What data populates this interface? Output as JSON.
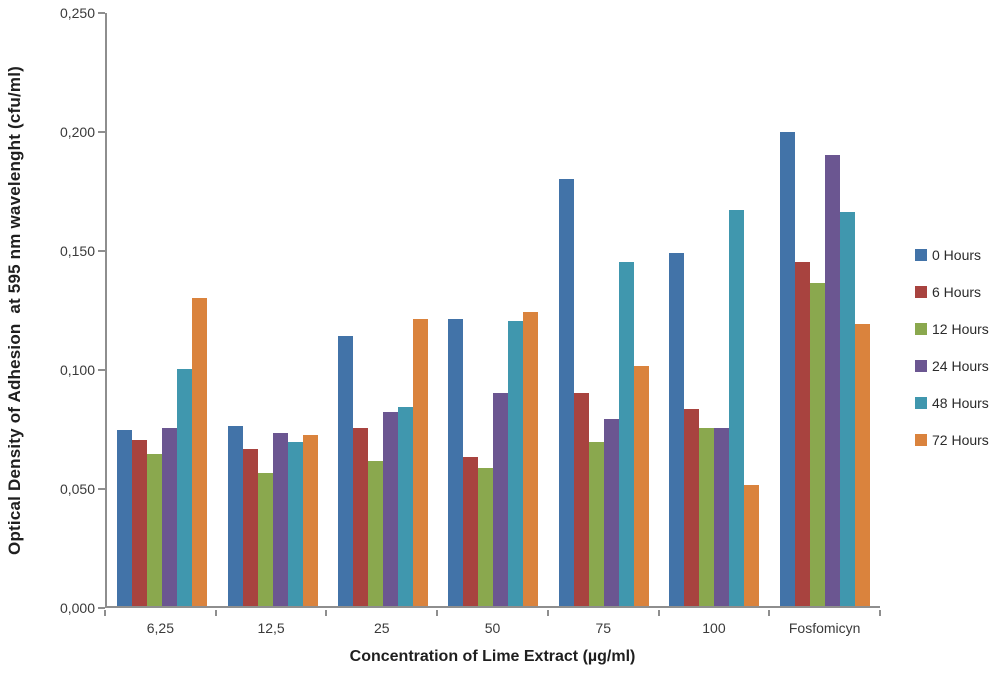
{
  "chart_data": {
    "type": "bar",
    "title": "",
    "xlabel": "Concentration of Lime Extract (µg/ml)",
    "ylabel": "Optical Density of Adhesion  at 595 nm wavelenght (cfu/ml)",
    "categories": [
      "6,25",
      "12,5",
      "25",
      "50",
      "75",
      "100",
      "Fosfomicyn"
    ],
    "series": [
      {
        "name": "0 Hours",
        "color": "#4273a8",
        "values": [
          0.074,
          0.076,
          0.114,
          0.121,
          0.18,
          0.149,
          0.2
        ]
      },
      {
        "name": "6 Hours",
        "color": "#a8433f",
        "values": [
          0.07,
          0.066,
          0.075,
          0.063,
          0.09,
          0.083,
          0.145
        ]
      },
      {
        "name": "12 Hours",
        "color": "#8aa84e",
        "values": [
          0.064,
          0.056,
          0.061,
          0.058,
          0.069,
          0.075,
          0.136
        ]
      },
      {
        "name": "24 Hours",
        "color": "#6b5691",
        "values": [
          0.075,
          0.073,
          0.082,
          0.09,
          0.079,
          0.075,
          0.19
        ]
      },
      {
        "name": "48 Hours",
        "color": "#4097ae",
        "values": [
          0.1,
          0.069,
          0.084,
          0.12,
          0.145,
          0.167,
          0.166
        ]
      },
      {
        "name": "72 Hours",
        "color": "#da833d",
        "values": [
          0.13,
          0.072,
          0.121,
          0.124,
          0.101,
          0.051,
          0.119
        ]
      }
    ],
    "ylim": [
      0,
      0.25
    ],
    "ytick_step": 0.05,
    "ytick_labels": [
      "0,000",
      "0,050",
      "0,100",
      "0,150",
      "0,200",
      "0,250"
    ],
    "grid": false,
    "legend_position": "right",
    "axis_color": "#8e8e8e"
  }
}
